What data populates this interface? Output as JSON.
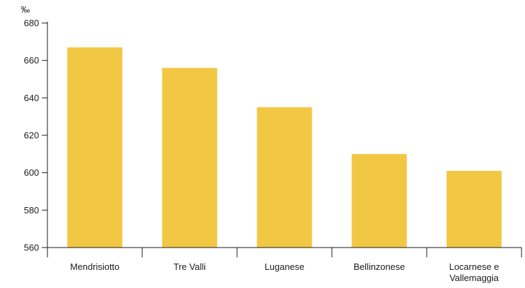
{
  "chart_data": {
    "type": "bar",
    "unit": "‰",
    "categories": [
      "Mendrisiotto",
      "Tre Valli",
      "Luganese",
      "Bellinzonese",
      "Locarnese e Vallemaggia"
    ],
    "category_lines": [
      [
        "Mendrisiotto"
      ],
      [
        "Tre Valli"
      ],
      [
        "Luganese"
      ],
      [
        "Bellinzonese"
      ],
      [
        "Locarnese e",
        "Vallemaggia"
      ]
    ],
    "values": [
      667,
      656,
      635,
      610,
      601
    ],
    "ylim": [
      560,
      680
    ],
    "yticks": [
      560,
      580,
      600,
      620,
      640,
      660,
      680
    ],
    "title": "",
    "xlabel": "",
    "ylabel": "",
    "grid": false,
    "bar_color": "#f2c744",
    "axis_color": "#1a1a1a"
  }
}
